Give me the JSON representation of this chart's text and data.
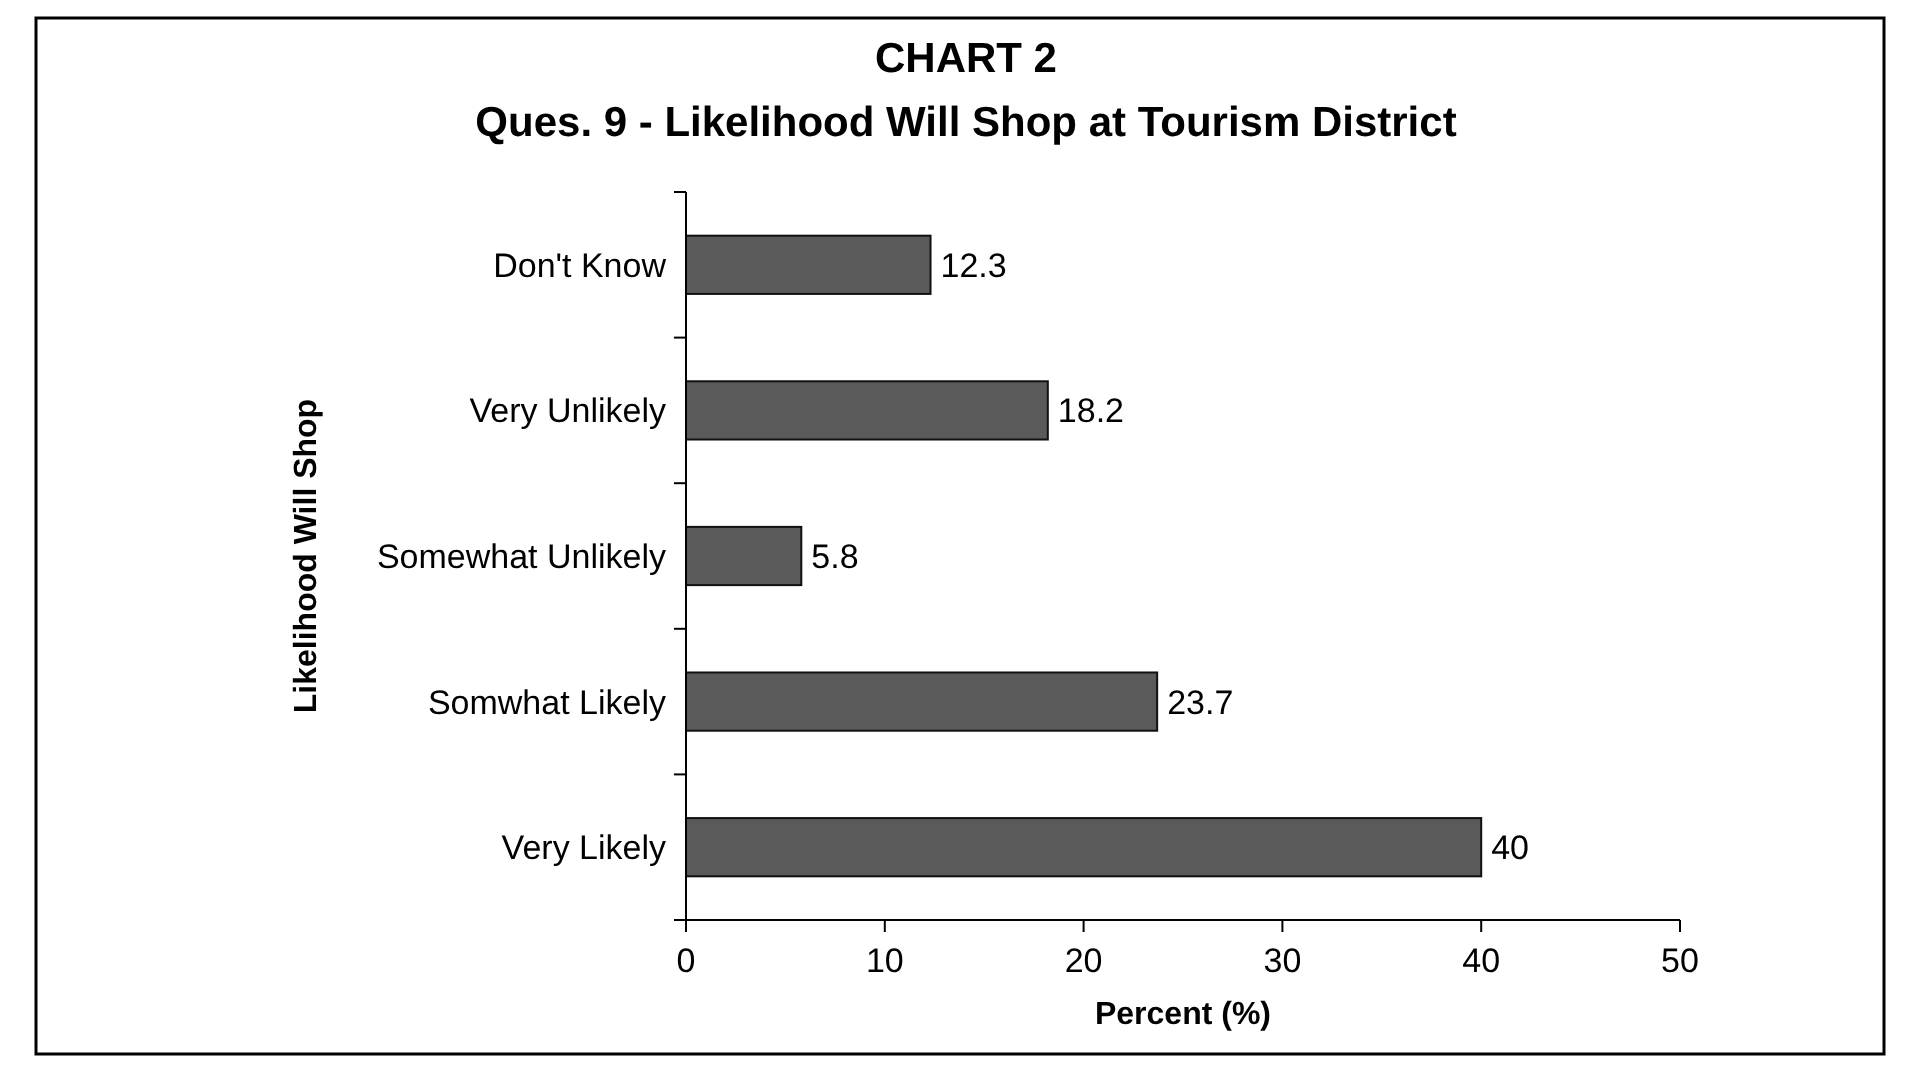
{
  "chart_data": {
    "type": "bar",
    "orientation": "horizontal",
    "title": "CHART 2",
    "subtitle": "Ques. 9 - Likelihood Will Shop at Tourism District",
    "xlabel": "Percent (%)",
    "ylabel": "Likelihood Will Shop",
    "categories": [
      "Don't Know",
      "Very Unlikely",
      "Somewhat Unlikely",
      "Somwhat Likely",
      "Very Likely"
    ],
    "values": [
      12.3,
      18.2,
      5.8,
      23.7,
      40
    ],
    "value_labels": [
      "12.3",
      "18.2",
      "5.8",
      "23.7",
      "40"
    ],
    "color": "#5a5a5a",
    "xlim": [
      0,
      50
    ],
    "xticks": [
      0,
      10,
      20,
      30,
      40,
      50
    ],
    "grid": false
  }
}
